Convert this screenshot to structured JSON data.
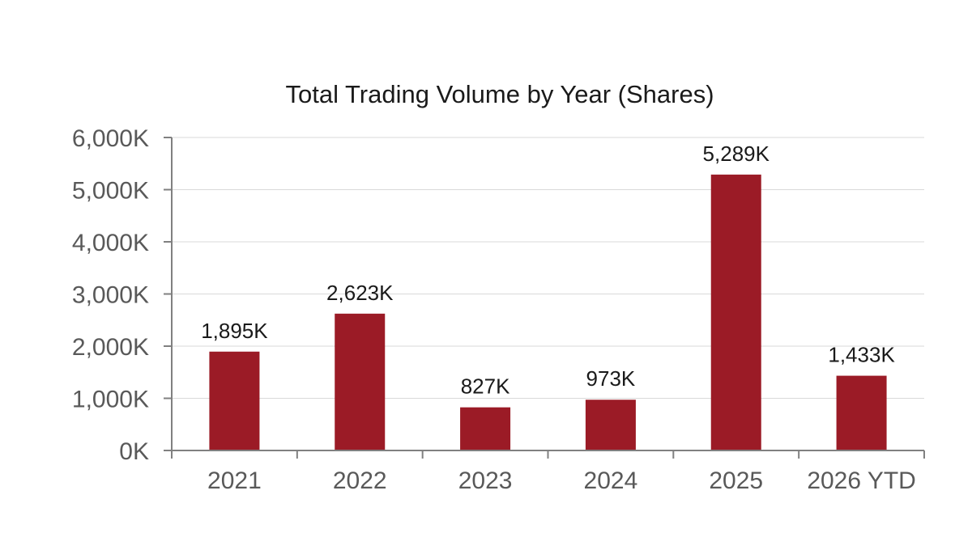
{
  "chart_data": {
    "type": "bar",
    "title": "Total Trading Volume by Year (Shares)",
    "xlabel": "",
    "ylabel": "",
    "categories": [
      "2021",
      "2022",
      "2023",
      "2024",
      "2025",
      "2026 YTD"
    ],
    "values": [
      1895,
      2623,
      827,
      973,
      5289,
      1433
    ],
    "data_labels": [
      "1,895K",
      "2,623K",
      "827K",
      "973K",
      "5,289K",
      "1,433K"
    ],
    "ylim": [
      0,
      6000
    ],
    "y_ticks": [
      0,
      1000,
      2000,
      3000,
      4000,
      5000,
      6000
    ],
    "y_tick_labels": [
      "0K",
      "1,000K",
      "2,000K",
      "3,000K",
      "4,000K",
      "5,000K",
      "6,000K"
    ],
    "grid": true,
    "legend": "none",
    "bar_color": "#9b1b26",
    "grid_color": "#d9d9d9",
    "axis_color": "#808080"
  }
}
